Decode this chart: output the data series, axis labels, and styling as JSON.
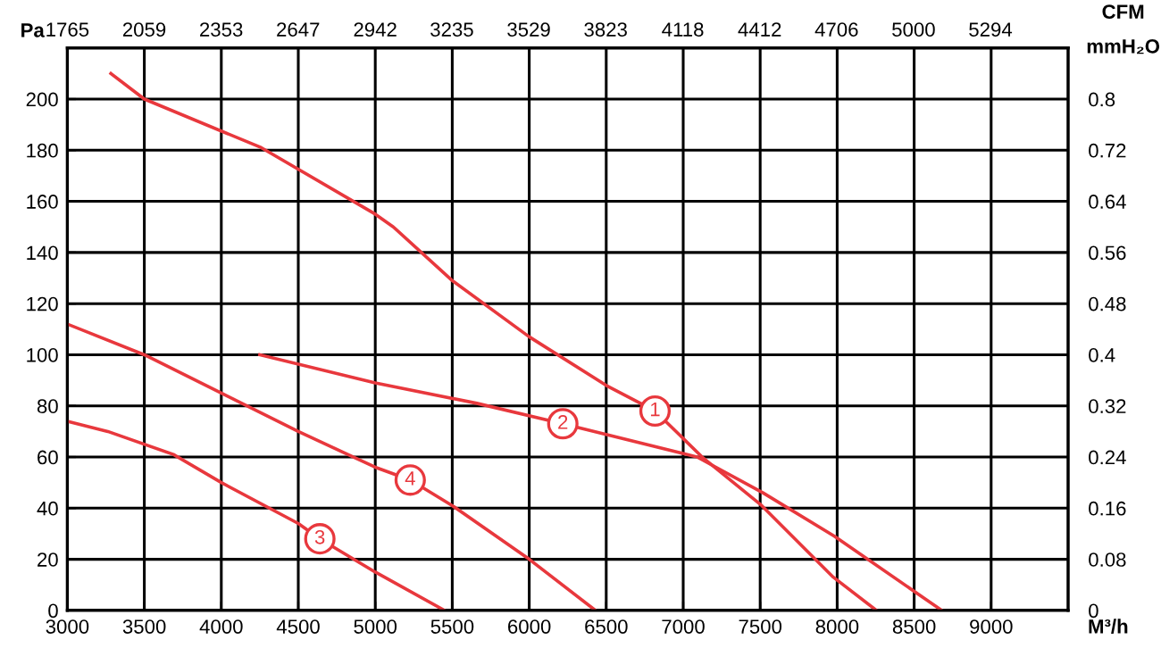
{
  "chart_data": {
    "type": "line",
    "xlabel": "M³/h",
    "ylabel": "Pa",
    "x2label": "CFM",
    "y2label": "mmH₂O",
    "xlim": [
      3000,
      9500
    ],
    "xticks": [
      3000,
      3500,
      4000,
      4500,
      5000,
      5500,
      6000,
      6500,
      7000,
      7500,
      8000,
      8500,
      9000
    ],
    "ylim": [
      0,
      220
    ],
    "yticks": [
      0,
      20,
      40,
      60,
      80,
      100,
      120,
      140,
      160,
      180,
      200
    ],
    "x2lim": [
      1765,
      5591
    ],
    "x2ticks": [
      1765,
      2059,
      2353,
      2647,
      2942,
      3235,
      3529,
      3823,
      4118,
      4412,
      4706,
      5000,
      5294
    ],
    "y2lim": [
      0,
      0.88
    ],
    "y2ticks": [
      0,
      0.08,
      0.16,
      0.24,
      0.32,
      0.4,
      0.48,
      0.56,
      0.64,
      0.72,
      0.8
    ],
    "grid": true,
    "marker": "none",
    "line_style": "solid",
    "series": [
      {
        "color": "#e8383d",
        "x": [
          3283,
          3500,
          4260,
          5000,
          5117,
          5500,
          6000,
          6500,
          6817,
          7123,
          7510,
          7975,
          8255
        ],
        "values": [
          210,
          200,
          181,
          155,
          150,
          129,
          107,
          88,
          78,
          60,
          41,
          13,
          0
        ]
      },
      {
        "color": "#e8383d",
        "x": [
          4250,
          5000,
          5660,
          6218,
          7090,
          7518,
          7982,
          8680
        ],
        "values": [
          100,
          89,
          81,
          73,
          60,
          46,
          29,
          0
        ]
      },
      {
        "color": "#e8383d",
        "x": [
          3000,
          3263,
          3689,
          4000,
          4500,
          4640,
          5000,
          5450
        ],
        "values": [
          74,
          70,
          61,
          50,
          34,
          28,
          15,
          0
        ]
      },
      {
        "color": "#e8383d",
        "x": [
          3000,
          3500,
          4000,
          4500,
          5000,
          5227,
          5500,
          6000,
          6430
        ],
        "values": [
          112,
          100,
          85,
          70,
          56,
          51,
          41,
          20,
          0
        ]
      }
    ],
    "annotations": [
      {
        "text": "1",
        "x": 6817,
        "y": 78
      },
      {
        "text": "2",
        "x": 6218,
        "y": 73
      },
      {
        "text": "3",
        "x": 4640,
        "y": 28
      },
      {
        "text": "4",
        "x": 5227,
        "y": 51
      }
    ]
  }
}
